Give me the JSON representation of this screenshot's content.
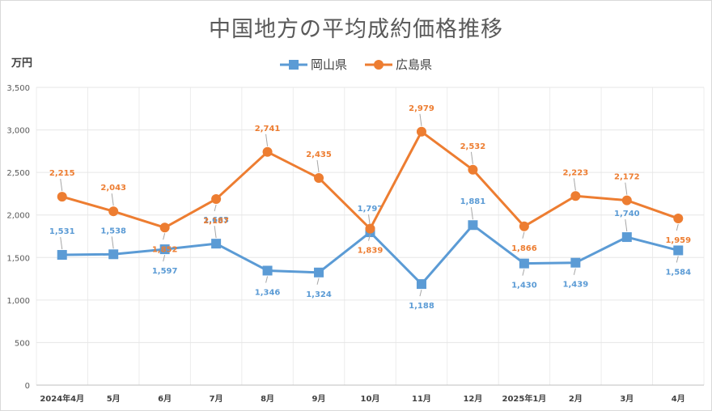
{
  "chart_data": {
    "type": "line",
    "title": "中国地方の平均成約価格推移",
    "ylabel": "万円",
    "xlabel": "",
    "categories": [
      "2024年4月",
      "5月",
      "6月",
      "7月",
      "8月",
      "9月",
      "10月",
      "11月",
      "12月",
      "2025年1月",
      "2月",
      "3月",
      "4月"
    ],
    "ylim": [
      0,
      3500
    ],
    "yticks": [
      "0",
      "500",
      "1,000",
      "1,500",
      "2,000",
      "2,500",
      "3,000",
      "3,500"
    ],
    "grid": true,
    "legend_position": "top-center",
    "series": [
      {
        "name": "岡山県",
        "color": "#5b9bd5",
        "marker": "square",
        "values": [
          1531,
          1538,
          1597,
          1663,
          1346,
          1324,
          1797,
          1188,
          1881,
          1430,
          1439,
          1740,
          1584
        ],
        "labels": [
          "1,531",
          "1,538",
          "1,597",
          "1,663",
          "1,346",
          "1,324",
          "1,797",
          "1,188",
          "1,881",
          "1,430",
          "1,439",
          "1,740",
          "1,584"
        ]
      },
      {
        "name": "広島県",
        "color": "#ed7d31",
        "marker": "circle",
        "values": [
          2215,
          2043,
          1852,
          2187,
          2741,
          2435,
          1839,
          2979,
          2532,
          1866,
          2223,
          2172,
          1959
        ],
        "labels": [
          "2,215",
          "2,043",
          "1,852",
          "2,187",
          "2,741",
          "2,435",
          "1,839",
          "2,979",
          "2,532",
          "1,866",
          "2,223",
          "2,172",
          "1,959"
        ]
      }
    ]
  }
}
